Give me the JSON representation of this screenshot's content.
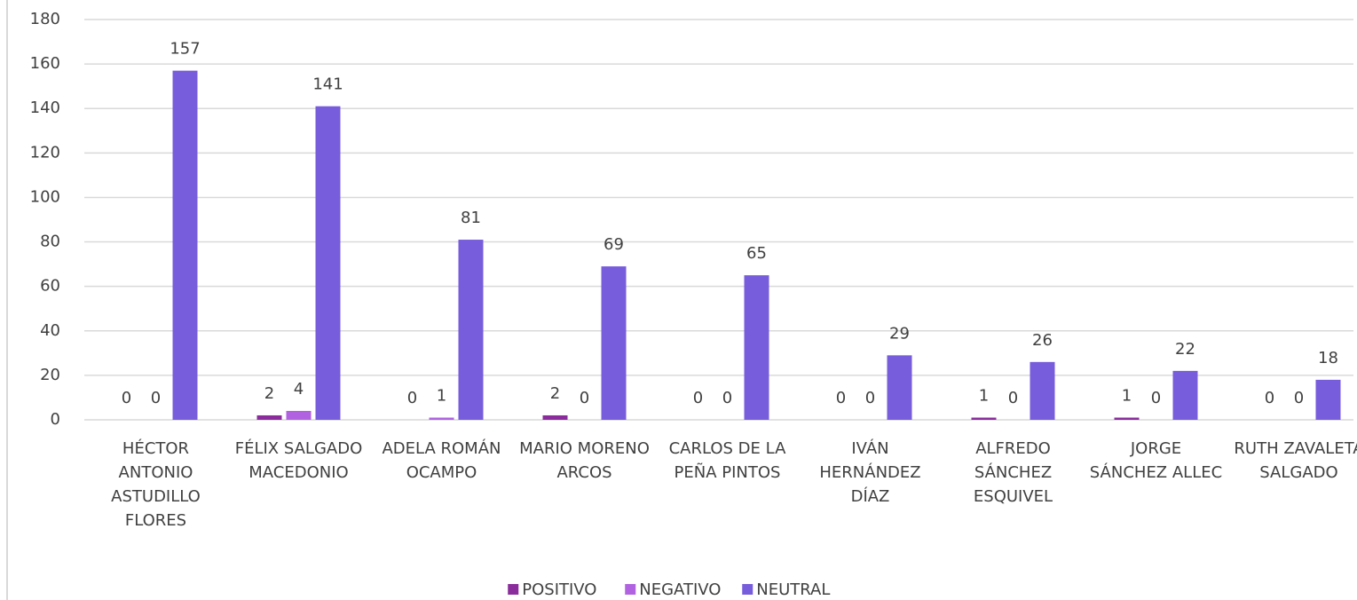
{
  "chart_data": {
    "type": "bar",
    "categories": [
      "HÉCTOR ANTONIO ASTUDILLO FLORES",
      "FÉLIX SALGADO MACEDONIO",
      "ADELA ROMÁN OCAMPO",
      "MARIO MORENO ARCOS",
      "CARLOS DE LA PEÑA PINTOS",
      "IVÁN HERNÁNDEZ DÍAZ",
      "ALFREDO SÁNCHEZ ESQUIVEL",
      "JORGE SÁNCHEZ ALLEC",
      "RUTH ZAVALETA SALGADO"
    ],
    "series": [
      {
        "name": "POSITIVO",
        "color": "#8a2c9b",
        "values": [
          0,
          2,
          0,
          2,
          0,
          0,
          1,
          1,
          0
        ]
      },
      {
        "name": "NEGATIVO",
        "color": "#b062e0",
        "values": [
          0,
          4,
          1,
          0,
          0,
          0,
          0,
          0,
          0
        ]
      },
      {
        "name": "NEUTRAL",
        "color": "#775cdb",
        "values": [
          157,
          141,
          81,
          69,
          65,
          29,
          26,
          22,
          18
        ]
      }
    ],
    "ylim": [
      0,
      180
    ],
    "yticks": [
      0,
      20,
      40,
      60,
      80,
      100,
      120,
      140,
      160,
      180
    ],
    "grid": true,
    "legend": "bottom"
  }
}
